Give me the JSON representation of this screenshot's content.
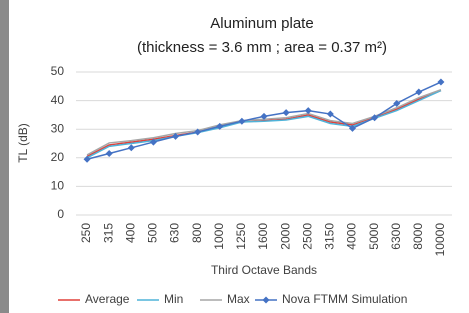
{
  "chart_data": {
    "type": "line",
    "title": "Aluminum plate",
    "subtitle": "(thickness = 3.6 mm ; area = 0.37 m²)",
    "x_label": "Third Octave Bands",
    "y_label": "TL (dB)",
    "categories": [
      "250",
      "315",
      "400",
      "500",
      "630",
      "800",
      "1000",
      "1250",
      "1600",
      "2000",
      "2500",
      "3150",
      "4000",
      "5000",
      "6300",
      "8000",
      "10000"
    ],
    "series": [
      {
        "name": "Average",
        "color": "#e0403a",
        "values": [
          20.5,
          24.5,
          25.5,
          26.5,
          27.8,
          29,
          31,
          32.5,
          33,
          33.5,
          35,
          32.5,
          31.5,
          34,
          37,
          40.5,
          43.5
        ]
      },
      {
        "name": "Min",
        "color": "#4fb3d9",
        "values": [
          20,
          24,
          25,
          26,
          27.5,
          28.8,
          30.5,
          32.5,
          32.8,
          33.2,
          34.5,
          32,
          31,
          33.8,
          36.5,
          40,
          43.5
        ]
      },
      {
        "name": "Max",
        "color": "#a6a6a6",
        "values": [
          21,
          25.2,
          26,
          27,
          28.5,
          29.5,
          31.5,
          33,
          33.5,
          34,
          35.5,
          33,
          32,
          34.5,
          37.5,
          41,
          43.8
        ]
      },
      {
        "name": "Nova FTMM Simulation",
        "color": "#4472c4",
        "marker": "diamond",
        "values": [
          19.5,
          21.5,
          23.5,
          25.5,
          27.5,
          29,
          31,
          32.8,
          34.5,
          35.8,
          36.5,
          35.3,
          30.3,
          34,
          39,
          43,
          46.5
        ]
      }
    ],
    "ylim": [
      0,
      50
    ],
    "yticks": [
      0,
      10,
      20,
      30,
      40,
      50
    ],
    "grid": true
  }
}
